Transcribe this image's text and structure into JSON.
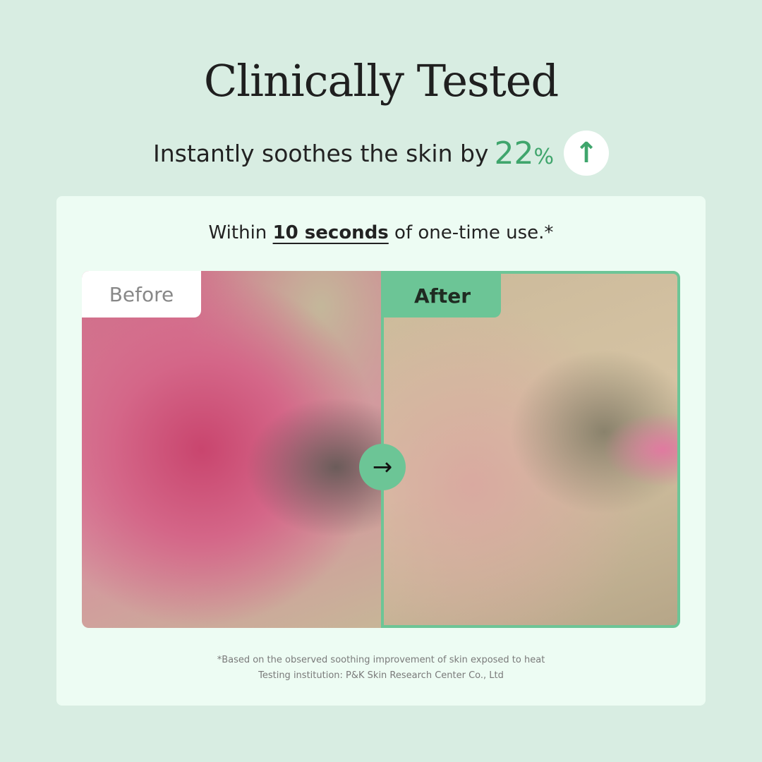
{
  "title": "Clinically Tested",
  "subtitle": {
    "text": "Instantly soothes the skin by",
    "value": "22",
    "unit": "%",
    "icon": "arrow-up-icon"
  },
  "card": {
    "headline_pre": "Within",
    "headline_bold": "10 seconds",
    "headline_post": "of one-time use.*",
    "before_label": "Before",
    "after_label": "After",
    "compare_icon": "arrow-right-icon",
    "arrow": "→",
    "up": "↑",
    "footnote_1": "*Based on the observed soothing improvement of skin exposed to heat",
    "footnote_2": "Testing institution: P&K Skin Research Center Co., Ltd"
  },
  "colors": {
    "accent": "#3fa56c",
    "frame": "#6cc596",
    "background": "#d8ede2",
    "card": "#edfcf3"
  }
}
